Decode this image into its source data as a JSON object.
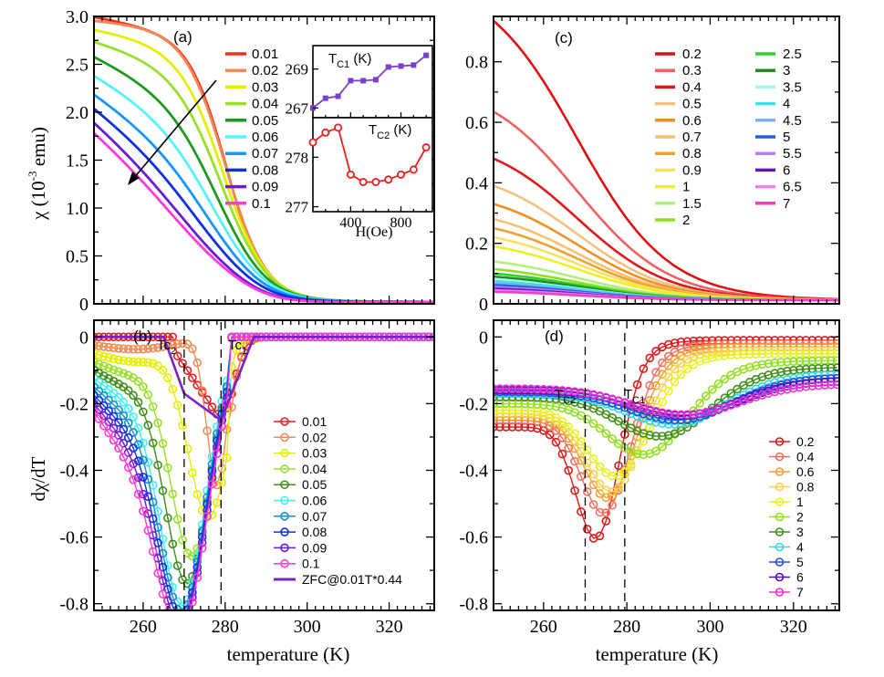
{
  "figure": {
    "xlabel": "temperature (K)",
    "x_ticks": [
      "260",
      "280",
      "300",
      "320"
    ],
    "vline_labels": {
      "tc2_b": "Tc",
      "tc2_b_sub": "2",
      "tc1_b": "Tc",
      "tc1_b_sub": "1",
      "tc2_d": "T",
      "tc2_d_sub": "C2",
      "tc1_d": "T",
      "tc1_d_sub": "C1"
    }
  },
  "chart_data": [
    {
      "panel": "a",
      "type": "line",
      "label": "(a)",
      "ylabel_main": "χ (10",
      "ylabel_exp": "-3",
      "ylabel_tail": " emu)",
      "xlim": [
        248,
        331
      ],
      "ylim": [
        0,
        3.0
      ],
      "y_ticks": [
        "0",
        "0.5",
        "1.0",
        "1.5",
        "2.0",
        "2.5",
        "3.0"
      ],
      "model": {
        "tc": 280,
        "width": 4.5,
        "tail_amp": 0.27,
        "tail_width": 12
      },
      "series": [
        {
          "name": "0.01",
          "color": "#ff2a1a",
          "low": 2.98,
          "slope": 0.002
        },
        {
          "name": "0.02",
          "color": "#f08a55",
          "low": 2.95,
          "slope": 0.001
        },
        {
          "name": "0.03",
          "color": "#e6ee00",
          "low": 2.85,
          "slope": 0.002
        },
        {
          "name": "0.04",
          "color": "#98e02a",
          "low": 2.72,
          "slope": 0.003
        },
        {
          "name": "0.05",
          "color": "#1e9a1e",
          "low": 2.55,
          "slope": 0.005
        },
        {
          "name": "0.06",
          "color": "#55f2ff",
          "low": 2.35,
          "slope": 0.006
        },
        {
          "name": "0.07",
          "color": "#1596ff",
          "low": 2.15,
          "slope": 0.007
        },
        {
          "name": "0.08",
          "color": "#1030e0",
          "low": 2.0,
          "slope": 0.008
        },
        {
          "name": "0.09",
          "color": "#6a1cd8",
          "low": 1.85,
          "slope": 0.009
        },
        {
          "name": "0.1",
          "color": "#ff3ad8",
          "low": 1.75,
          "slope": 0.009
        }
      ],
      "inset_top": {
        "title": "T",
        "title_sub": "C1",
        "title_unit": " (K)",
        "color": "#7a3fd0",
        "xlim": [
          100,
          1050
        ],
        "ylim": [
          266.5,
          270.2
        ],
        "y_ticks": [
          "267",
          "269"
        ],
        "x": [
          100,
          200,
          300,
          400,
          500,
          600,
          700,
          800,
          900,
          1000
        ],
        "y": [
          267.0,
          267.5,
          267.6,
          268.4,
          268.4,
          268.45,
          269.1,
          269.15,
          269.2,
          269.7
        ]
      },
      "inset_bottom": {
        "title": "T",
        "title_sub": "C2",
        "title_unit": " (K)",
        "color": "#e82020",
        "xlim": [
          100,
          1050
        ],
        "ylim": [
          276.9,
          278.8
        ],
        "y_ticks": [
          "277",
          "278"
        ],
        "x_ticks": [
          "400",
          "800"
        ],
        "xlabel": "H(Oe)",
        "x": [
          100,
          200,
          300,
          400,
          500,
          600,
          700,
          800,
          900,
          1000
        ],
        "y": [
          278.3,
          278.5,
          278.6,
          277.65,
          277.5,
          277.5,
          277.55,
          277.65,
          277.75,
          278.2
        ]
      }
    },
    {
      "panel": "b",
      "type": "scatter",
      "label": "(b)",
      "ylabel": "dχ/dT",
      "xlim": [
        248,
        331
      ],
      "ylim": [
        -0.82,
        0.05
      ],
      "y_ticks": [
        "-0.8",
        "-0.6",
        "-0.4",
        "-0.2",
        "0"
      ],
      "vlines": [
        270,
        279
      ],
      "model": {
        "tc": 280,
        "width": 4.5,
        "tail_amp": 0.27,
        "tail_width": 12
      },
      "series": [
        {
          "name": "0.01",
          "color": "#e02020"
        },
        {
          "name": "0.02",
          "color": "#f08a55"
        },
        {
          "name": "0.03",
          "color": "#e6ee00"
        },
        {
          "name": "0.04",
          "color": "#98e02a"
        },
        {
          "name": "0.05",
          "color": "#3f8f1a"
        },
        {
          "name": "0.06",
          "color": "#40f0f0"
        },
        {
          "name": "0.07",
          "color": "#1590c8"
        },
        {
          "name": "0.08",
          "color": "#1030e0"
        },
        {
          "name": "0.09",
          "color": "#6a1cd8"
        },
        {
          "name": "0.1",
          "color": "#ff3ad8"
        }
      ],
      "zfc": {
        "name": "ZFC@0.01T*0.44",
        "color": "#7a22c8"
      }
    },
    {
      "panel": "c",
      "type": "line",
      "label": "(c)",
      "xlim": [
        248,
        331
      ],
      "ylim": [
        0,
        0.95
      ],
      "y_ticks": [
        "0",
        "0.2",
        "0.4",
        "0.6",
        "0.8"
      ],
      "series": [
        {
          "name": "0.2",
          "color": "#e01010",
          "start": 0.935
        },
        {
          "name": "0.3",
          "color": "#f06060",
          "start": 0.635
        },
        {
          "name": "0.4",
          "color": "#e01818",
          "start": 0.48
        },
        {
          "name": "0.5",
          "color": "#f8c080",
          "start": 0.39
        },
        {
          "name": "0.6",
          "color": "#f09020",
          "start": 0.33
        },
        {
          "name": "0.7",
          "color": "#f8c070",
          "start": 0.28
        },
        {
          "name": "0.8",
          "color": "#f0a030",
          "start": 0.25
        },
        {
          "name": "0.9",
          "color": "#f8e060",
          "start": 0.22
        },
        {
          "name": "1",
          "color": "#f0f020",
          "start": 0.19
        },
        {
          "name": "1.5",
          "color": "#b0f080",
          "start": 0.14
        },
        {
          "name": "2",
          "color": "#90e020",
          "start": 0.115
        },
        {
          "name": "2.5",
          "color": "#30d030",
          "start": 0.1
        },
        {
          "name": "3",
          "color": "#208f20",
          "start": 0.09
        },
        {
          "name": "3.5",
          "color": "#a0f8f0",
          "start": 0.08
        },
        {
          "name": "4",
          "color": "#40e0e8",
          "start": 0.075
        },
        {
          "name": "4.5",
          "color": "#80b0f0",
          "start": 0.068
        },
        {
          "name": "5",
          "color": "#2060e0",
          "start": 0.062
        },
        {
          "name": "5.5",
          "color": "#b080f0",
          "start": 0.056
        },
        {
          "name": "6",
          "color": "#6010d0",
          "start": 0.05
        },
        {
          "name": "6.5",
          "color": "#f080f0",
          "start": 0.045
        },
        {
          "name": "7",
          "color": "#f040c0",
          "start": 0.04
        }
      ]
    },
    {
      "panel": "d",
      "type": "scatter",
      "label": "(d)",
      "xlim": [
        248,
        331
      ],
      "ylim": [
        -0.82,
        0.05
      ],
      "y_ticks": [
        "-0.8",
        "-0.6",
        "-0.4",
        "-0.2",
        "0"
      ],
      "vlines": [
        270,
        279.5
      ],
      "series": [
        {
          "name": "0.2",
          "color": "#e01818",
          "start": -0.27,
          "min": -0.64,
          "tmin": 273,
          "w": 7,
          "end": -0.01
        },
        {
          "name": "0.4",
          "color": "#f07060",
          "start": -0.25,
          "min": -0.56,
          "tmin": 275,
          "w": 8,
          "end": -0.02
        },
        {
          "name": "0.6",
          "color": "#f0a030",
          "start": -0.24,
          "min": -0.51,
          "tmin": 276,
          "w": 8.5,
          "end": -0.03
        },
        {
          "name": "0.8",
          "color": "#f8d050",
          "start": -0.23,
          "min": -0.49,
          "tmin": 277,
          "w": 9,
          "end": -0.04
        },
        {
          "name": "1",
          "color": "#e8f020",
          "start": -0.22,
          "min": -0.44,
          "tmin": 278,
          "w": 10,
          "end": -0.05
        },
        {
          "name": "2",
          "color": "#90e020",
          "start": -0.2,
          "min": -0.37,
          "tmin": 285,
          "w": 13,
          "end": -0.07
        },
        {
          "name": "3",
          "color": "#3f8f1a",
          "start": -0.18,
          "min": -0.31,
          "tmin": 289,
          "w": 15,
          "end": -0.09
        },
        {
          "name": "4",
          "color": "#30d8e8",
          "start": -0.17,
          "min": -0.27,
          "tmin": 292,
          "w": 16,
          "end": -0.11
        },
        {
          "name": "5",
          "color": "#2050e0",
          "start": -0.165,
          "min": -0.255,
          "tmin": 293,
          "w": 17,
          "end": -0.12
        },
        {
          "name": "6",
          "color": "#5010c0",
          "start": -0.16,
          "min": -0.24,
          "tmin": 294,
          "w": 17,
          "end": -0.13
        },
        {
          "name": "7",
          "color": "#f030d0",
          "start": -0.155,
          "min": -0.235,
          "tmin": 294,
          "w": 18,
          "end": -0.14
        }
      ]
    }
  ]
}
